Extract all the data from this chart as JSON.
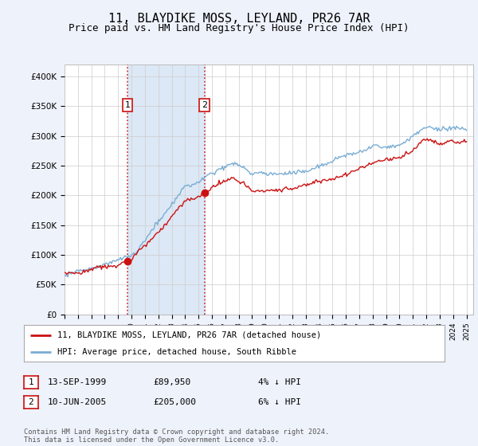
{
  "title": "11, BLAYDIKE MOSS, LEYLAND, PR26 7AR",
  "subtitle": "Price paid vs. HM Land Registry's House Price Index (HPI)",
  "title_fontsize": 11,
  "subtitle_fontsize": 9,
  "ylim": [
    0,
    420000
  ],
  "yticks": [
    0,
    50000,
    100000,
    150000,
    200000,
    250000,
    300000,
    350000,
    400000
  ],
  "ytick_labels": [
    "£0",
    "£50K",
    "£100K",
    "£150K",
    "£200K",
    "£250K",
    "£300K",
    "£350K",
    "£400K"
  ],
  "background_color": "#eef2fb",
  "plot_bg_color": "#ffffff",
  "shade_color": "#dce8f5",
  "grid_color": "#cccccc",
  "hpi_color": "#7aadd4",
  "price_color": "#cc1111",
  "sale1_date": 1999.71,
  "sale1_price": 89950,
  "sale2_date": 2005.45,
  "sale2_price": 205000,
  "legend_label_red": "11, BLAYDIKE MOSS, LEYLAND, PR26 7AR (detached house)",
  "legend_label_blue": "HPI: Average price, detached house, South Ribble",
  "note1_label": "1",
  "note1_date": "13-SEP-1999",
  "note1_price": "£89,950",
  "note1_hpi": "4% ↓ HPI",
  "note2_label": "2",
  "note2_date": "10-JUN-2005",
  "note2_price": "£205,000",
  "note2_hpi": "6% ↓ HPI",
  "footnote": "Contains HM Land Registry data © Crown copyright and database right 2024.\nThis data is licensed under the Open Government Licence v3.0.",
  "xmin": 1995,
  "xmax": 2025.5
}
